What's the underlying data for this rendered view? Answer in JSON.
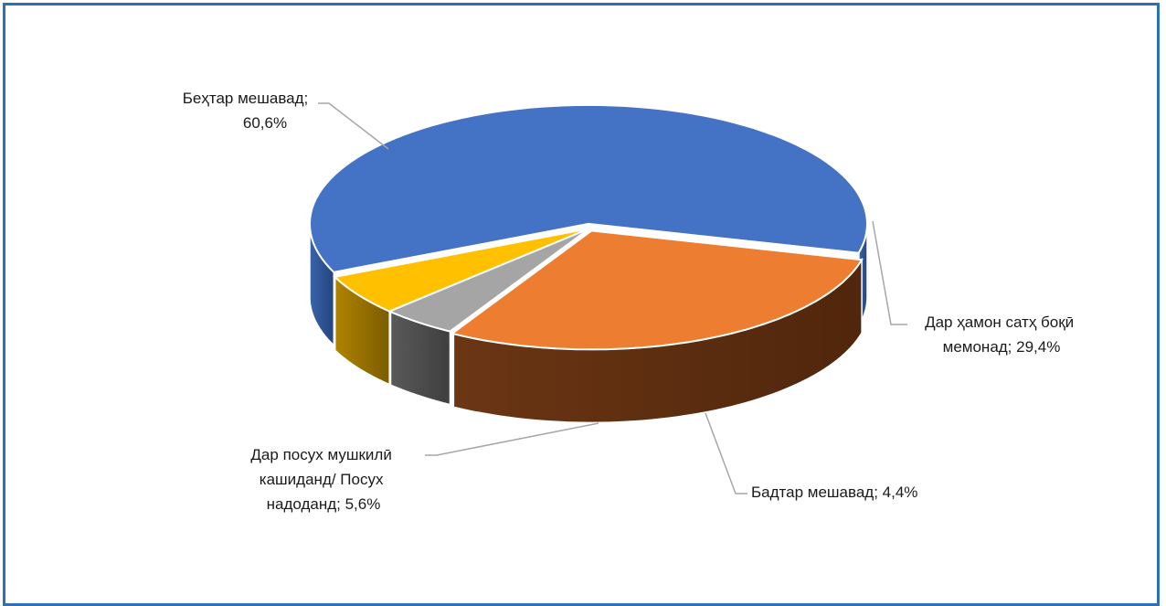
{
  "chart_data": {
    "type": "pie",
    "style": "3d-exploded",
    "title": "",
    "slices": [
      {
        "label": "Беҳтар мешавад",
        "value": 60.6,
        "color": "#4472C4"
      },
      {
        "label": "Дар ҳамон сатҳ боқӣ мемонад",
        "value": 29.4,
        "color": "#ED7D31"
      },
      {
        "label": "Бадтар мешавад",
        "value": 4.4,
        "color": "#A5A5A5"
      },
      {
        "label": "Дар посух мушкилӣ кашиданд/ Посух надоданд",
        "value": 5.6,
        "color": "#FFC000"
      }
    ]
  },
  "labels": {
    "slice0_line1": "Беҳтар мешавад;",
    "slice0_line2": "60,6%",
    "slice1_line1": "Дар ҳамон сатҳ боқӣ",
    "slice1_line2": "мемонад; 29,4%",
    "slice2_line1": "Бадтар мешавад; 4,4%",
    "slice3_line1": "Дар посух мушкилӣ",
    "slice3_line2": "кашиданд/ Посух",
    "slice3_line3": "надоданд; 5,6%"
  },
  "frame_color": "#2f6fb5"
}
